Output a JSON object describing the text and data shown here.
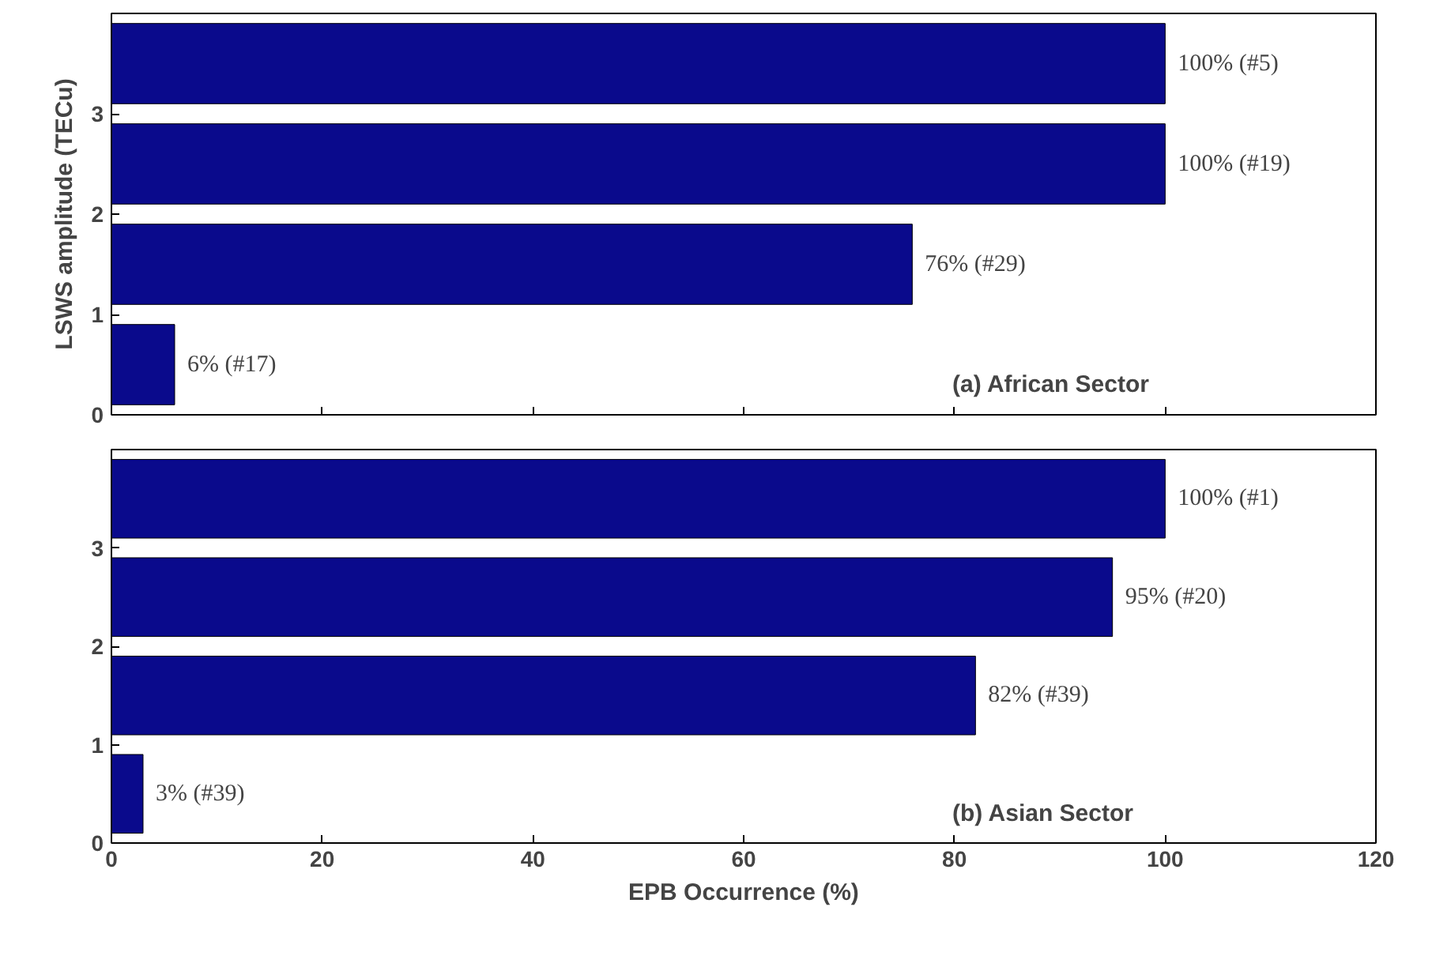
{
  "chart_data": [
    {
      "type": "bar",
      "orientation": "horizontal",
      "x": [
        0.5,
        1.5,
        2.5,
        3.5
      ],
      "values": [
        6,
        76,
        100,
        100
      ],
      "color": "#0a0a8c",
      "value_labels": [
        "6% (#17)",
        "76% (#29)",
        "100% (#19)",
        "100% (#5)"
      ],
      "xlim": [
        0,
        120
      ],
      "xticks": [
        0,
        20,
        40,
        60,
        80,
        100,
        120
      ],
      "ylim": [
        0,
        4
      ],
      "yticks": [
        0,
        1,
        2,
        3
      ],
      "tick_labels": "y",
      "ylabel": "LSWS amplitude (TECu)",
      "annotations": [
        "(a) African Sector"
      ],
      "grid": false
    },
    {
      "type": "bar",
      "orientation": "horizontal",
      "x": [
        0.5,
        1.5,
        2.5,
        3.5
      ],
      "values": [
        3,
        82,
        95,
        100
      ],
      "color": "#0a0a8c",
      "value_labels": [
        "3% (#39)",
        "82% (#39)",
        "95% (#20)",
        "100% (#1)"
      ],
      "xlim": [
        0,
        120
      ],
      "xticks": [
        0,
        20,
        40,
        60,
        80,
        100,
        120
      ],
      "ylim": [
        0,
        4
      ],
      "yticks": [
        0,
        1,
        2,
        3
      ],
      "xlabel": "EPB Occurrence (%)",
      "annotations": [
        "(b) Asian Sector"
      ],
      "grid": false
    }
  ]
}
